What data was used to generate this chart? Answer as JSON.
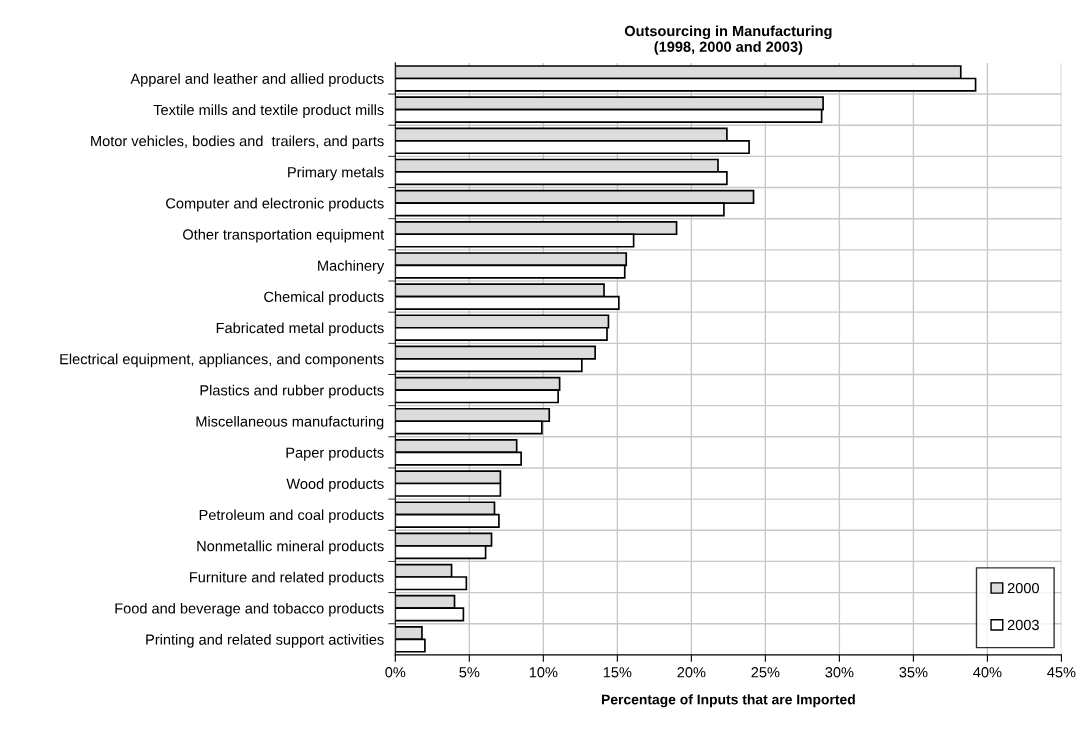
{
  "chart_data": {
    "type": "bar",
    "orientation": "horizontal",
    "title": "Outsourcing in Manufacturing\n(1998, 2000 and 2003)",
    "xlabel": "Percentage of Inputs that are Imported",
    "categories": [
      "Apparel and leather and allied products",
      "Textile mills and textile product mills",
      "Motor vehicles, bodies and  trailers, and parts",
      "Primary metals",
      "Computer and electronic products",
      "Other transportation equipment",
      "Machinery",
      "Chemical products",
      "Fabricated metal products",
      "Electrical equipment, appliances, and components",
      "Plastics and rubber products",
      "Miscellaneous manufacturing",
      "Paper products",
      "Wood products",
      "Petroleum and coal products",
      "Nonmetallic mineral products",
      "Furniture and related products",
      "Food and beverage and tobacco products",
      "Printing and related support activities"
    ],
    "series": [
      {
        "name": "2000",
        "color": "#dcdcdc",
        "values": [
          38.2,
          28.9,
          22.4,
          21.8,
          24.2,
          19.0,
          15.6,
          14.1,
          14.4,
          13.5,
          11.1,
          10.4,
          8.2,
          7.1,
          6.7,
          6.5,
          3.8,
          4.0,
          1.8
        ]
      },
      {
        "name": "2003",
        "color": "#ffffff",
        "values": [
          39.2,
          28.8,
          23.9,
          22.4,
          22.2,
          16.1,
          15.5,
          15.1,
          14.3,
          12.6,
          11.0,
          9.9,
          8.5,
          7.1,
          7.0,
          6.1,
          4.8,
          4.6,
          2.0
        ]
      }
    ],
    "xlim": [
      0,
      45
    ],
    "xticks": [
      {
        "value": 0,
        "label": "0%"
      },
      {
        "value": 5,
        "label": "5%"
      },
      {
        "value": 10,
        "label": "10%"
      },
      {
        "value": 15,
        "label": "15%"
      },
      {
        "value": 20,
        "label": "20%"
      },
      {
        "value": 25,
        "label": "25%"
      },
      {
        "value": 30,
        "label": "30%"
      },
      {
        "value": 35,
        "label": "35%"
      },
      {
        "value": 40,
        "label": "40%"
      },
      {
        "value": 45,
        "label": "45%"
      }
    ],
    "grid": true,
    "legend": "bottom right"
  }
}
